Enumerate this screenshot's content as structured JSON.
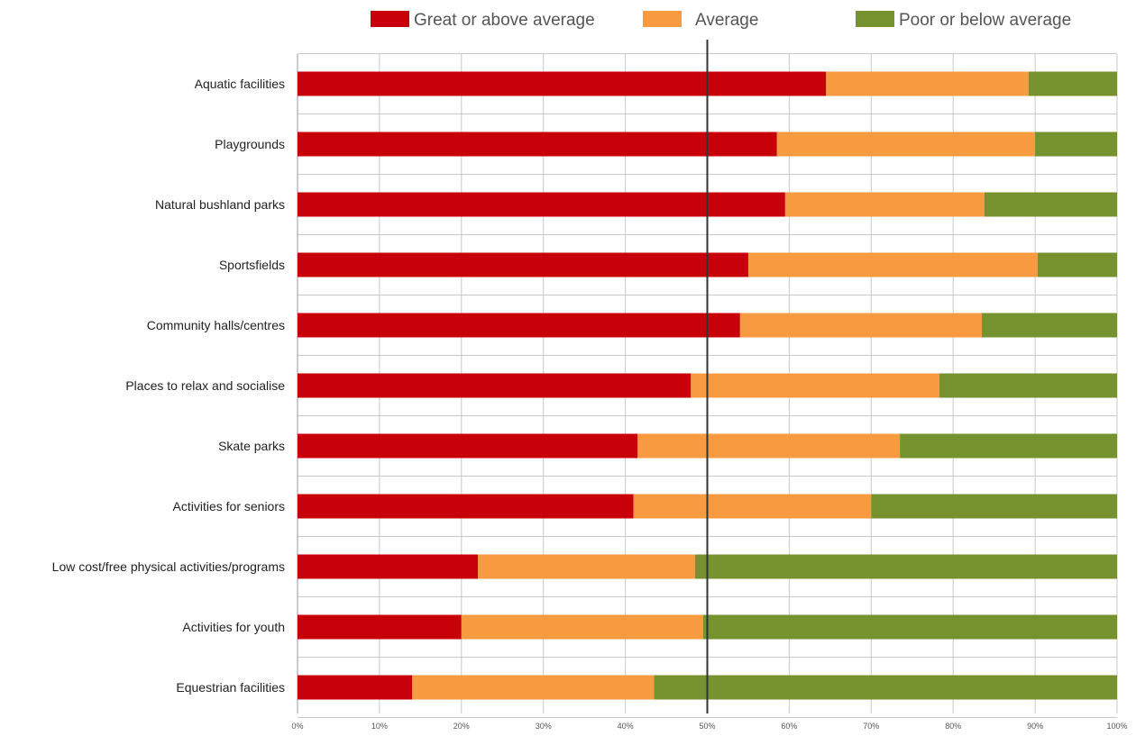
{
  "chart_data": {
    "type": "bar",
    "orientation": "horizontal",
    "stacked": true,
    "categories": [
      "Aquatic facilities",
      "Playgrounds",
      "Natural bushland parks",
      "Sportsfields",
      "Community halls/centres",
      "Places to relax and socialise",
      "Skate parks",
      "Activities for seniors",
      "Low cost/free physical activities/programs",
      "Activities for youth",
      "Equestrian facilities"
    ],
    "series": [
      {
        "name": "Great or above average",
        "color": "#c8000a",
        "values": [
          64.5,
          58.5,
          59.5,
          55,
          54,
          48,
          41.5,
          41,
          22,
          20,
          14
        ]
      },
      {
        "name": "Average",
        "color": "#f79a40",
        "values": [
          24.7,
          31.5,
          24.3,
          35.3,
          29.5,
          30.3,
          32,
          29,
          26.5,
          29.5,
          29.5
        ]
      },
      {
        "name": "Poor or below average",
        "color": "#76922f",
        "values": [
          10.8,
          10,
          16.2,
          9.7,
          16.5,
          21.7,
          26.5,
          30,
          51.5,
          50.5,
          56.5
        ]
      }
    ],
    "x_ticks": [
      "0%",
      "10%",
      "20%",
      "30%",
      "40%",
      "50%",
      "60%",
      "70%",
      "80%",
      "90%",
      "100%"
    ],
    "xlim": [
      0,
      100
    ],
    "reference_line": 50,
    "grid": true,
    "legend_position": "top"
  }
}
